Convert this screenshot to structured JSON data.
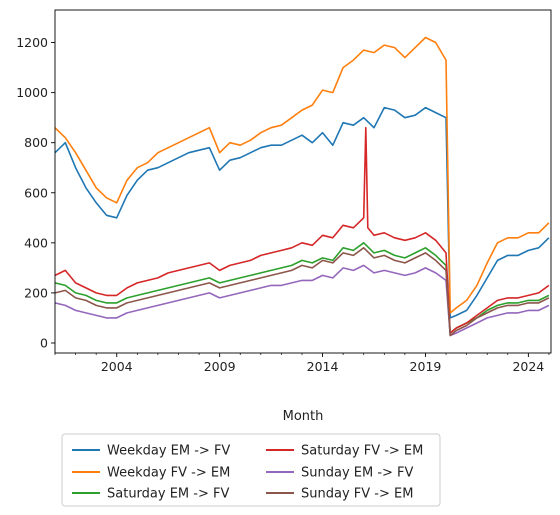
{
  "chart_data": {
    "type": "line",
    "title": "",
    "xlabel": "Month",
    "ylabel": "",
    "xlim": [
      2001.0,
      2025.1
    ],
    "ylim": [
      -40,
      1330
    ],
    "xticks": [
      2004,
      2009,
      2014,
      2019,
      2024
    ],
    "yticks": [
      0,
      200,
      400,
      600,
      800,
      1000,
      1200
    ],
    "grid": false,
    "legend_position": "bottom (below plot, 2 columns)",
    "series": [
      {
        "name": "Weekday EM -> FV",
        "color": "#1f77b4",
        "x": [
          2001.0,
          2001.5,
          2002.0,
          2002.5,
          2003.0,
          2003.5,
          2004.0,
          2004.5,
          2005.0,
          2005.5,
          2006.0,
          2006.5,
          2007.0,
          2007.5,
          2008.0,
          2008.5,
          2009.0,
          2009.5,
          2010.0,
          2010.5,
          2011.0,
          2011.5,
          2012.0,
          2012.5,
          2013.0,
          2013.5,
          2014.0,
          2014.5,
          2015.0,
          2015.5,
          2016.0,
          2016.5,
          2017.0,
          2017.5,
          2018.0,
          2018.5,
          2019.0,
          2019.5,
          2020.0,
          2020.2,
          2020.5,
          2021.0,
          2021.5,
          2022.0,
          2022.5,
          2023.0,
          2023.5,
          2024.0,
          2024.5,
          2025.0
        ],
        "values": [
          760,
          800,
          700,
          620,
          560,
          510,
          500,
          590,
          650,
          690,
          700,
          720,
          740,
          760,
          770,
          780,
          690,
          730,
          740,
          760,
          780,
          790,
          790,
          810,
          830,
          800,
          840,
          790,
          880,
          870,
          900,
          860,
          940,
          930,
          900,
          910,
          940,
          920,
          900,
          100,
          110,
          130,
          190,
          260,
          330,
          350,
          350,
          370,
          380,
          420
        ]
      },
      {
        "name": "Weekday FV -> EM",
        "color": "#ff7f0e",
        "x": [
          2001.0,
          2001.5,
          2002.0,
          2002.5,
          2003.0,
          2003.5,
          2004.0,
          2004.5,
          2005.0,
          2005.5,
          2006.0,
          2006.5,
          2007.0,
          2007.5,
          2008.0,
          2008.5,
          2009.0,
          2009.5,
          2010.0,
          2010.5,
          2011.0,
          2011.5,
          2012.0,
          2012.5,
          2013.0,
          2013.5,
          2014.0,
          2014.5,
          2015.0,
          2015.5,
          2016.0,
          2016.5,
          2017.0,
          2017.5,
          2018.0,
          2018.5,
          2019.0,
          2019.5,
          2020.0,
          2020.2,
          2020.5,
          2021.0,
          2021.5,
          2022.0,
          2022.5,
          2023.0,
          2023.5,
          2024.0,
          2024.5,
          2025.0
        ],
        "values": [
          860,
          820,
          760,
          690,
          620,
          580,
          560,
          650,
          700,
          720,
          760,
          780,
          800,
          820,
          840,
          860,
          760,
          800,
          790,
          810,
          840,
          860,
          870,
          900,
          930,
          950,
          1010,
          1000,
          1100,
          1130,
          1170,
          1160,
          1190,
          1180,
          1140,
          1180,
          1220,
          1200,
          1130,
          120,
          140,
          170,
          230,
          320,
          400,
          420,
          420,
          440,
          440,
          480
        ]
      },
      {
        "name": "Saturday EM -> FV",
        "color": "#2ca02c",
        "x": [
          2001.0,
          2001.5,
          2002.0,
          2002.5,
          2003.0,
          2003.5,
          2004.0,
          2004.5,
          2005.0,
          2005.5,
          2006.0,
          2006.5,
          2007.0,
          2007.5,
          2008.0,
          2008.5,
          2009.0,
          2009.5,
          2010.0,
          2010.5,
          2011.0,
          2011.5,
          2012.0,
          2012.5,
          2013.0,
          2013.5,
          2014.0,
          2014.5,
          2015.0,
          2015.5,
          2016.0,
          2016.5,
          2017.0,
          2017.5,
          2018.0,
          2018.5,
          2019.0,
          2019.5,
          2020.0,
          2020.2,
          2020.5,
          2021.0,
          2021.5,
          2022.0,
          2022.5,
          2023.0,
          2023.5,
          2024.0,
          2024.5,
          2025.0
        ],
        "values": [
          240,
          230,
          200,
          190,
          170,
          160,
          160,
          180,
          190,
          200,
          210,
          220,
          230,
          240,
          250,
          260,
          240,
          250,
          260,
          270,
          280,
          290,
          300,
          310,
          330,
          320,
          340,
          330,
          380,
          370,
          400,
          360,
          370,
          350,
          340,
          360,
          380,
          350,
          310,
          40,
          60,
          80,
          100,
          130,
          150,
          160,
          160,
          170,
          170,
          190
        ]
      },
      {
        "name": "Saturday FV -> EM",
        "color": "#d62728",
        "x": [
          2001.0,
          2001.5,
          2002.0,
          2002.5,
          2003.0,
          2003.5,
          2004.0,
          2004.5,
          2005.0,
          2005.5,
          2006.0,
          2006.5,
          2007.0,
          2007.5,
          2008.0,
          2008.5,
          2009.0,
          2009.5,
          2010.0,
          2010.5,
          2011.0,
          2011.5,
          2012.0,
          2012.5,
          2013.0,
          2013.5,
          2014.0,
          2014.5,
          2015.0,
          2015.5,
          2016.0,
          2016.1,
          2016.2,
          2016.5,
          2017.0,
          2017.5,
          2018.0,
          2018.5,
          2019.0,
          2019.5,
          2020.0,
          2020.2,
          2020.5,
          2021.0,
          2021.5,
          2022.0,
          2022.5,
          2023.0,
          2023.5,
          2024.0,
          2024.5,
          2025.0
        ],
        "values": [
          270,
          290,
          240,
          220,
          200,
          190,
          190,
          220,
          240,
          250,
          260,
          280,
          290,
          300,
          310,
          320,
          290,
          310,
          320,
          330,
          350,
          360,
          370,
          380,
          400,
          390,
          430,
          420,
          470,
          460,
          500,
          860,
          460,
          430,
          440,
          420,
          410,
          420,
          440,
          410,
          360,
          40,
          60,
          80,
          110,
          140,
          170,
          180,
          180,
          190,
          200,
          230
        ]
      },
      {
        "name": "Sunday EM -> FV",
        "color": "#9467bd",
        "x": [
          2001.0,
          2001.5,
          2002.0,
          2002.5,
          2003.0,
          2003.5,
          2004.0,
          2004.5,
          2005.0,
          2005.5,
          2006.0,
          2006.5,
          2007.0,
          2007.5,
          2008.0,
          2008.5,
          2009.0,
          2009.5,
          2010.0,
          2010.5,
          2011.0,
          2011.5,
          2012.0,
          2012.5,
          2013.0,
          2013.5,
          2014.0,
          2014.5,
          2015.0,
          2015.5,
          2016.0,
          2016.5,
          2017.0,
          2017.5,
          2018.0,
          2018.5,
          2019.0,
          2019.5,
          2020.0,
          2020.2,
          2020.5,
          2021.0,
          2021.5,
          2022.0,
          2022.5,
          2023.0,
          2023.5,
          2024.0,
          2024.5,
          2025.0
        ],
        "values": [
          160,
          150,
          130,
          120,
          110,
          100,
          100,
          120,
          130,
          140,
          150,
          160,
          170,
          180,
          190,
          200,
          180,
          190,
          200,
          210,
          220,
          230,
          230,
          240,
          250,
          250,
          270,
          260,
          300,
          290,
          310,
          280,
          290,
          280,
          270,
          280,
          300,
          280,
          250,
          30,
          40,
          60,
          80,
          100,
          110,
          120,
          120,
          130,
          130,
          150
        ]
      },
      {
        "name": "Sunday FV -> EM",
        "color": "#8c564b",
        "x": [
          2001.0,
          2001.5,
          2002.0,
          2002.5,
          2003.0,
          2003.5,
          2004.0,
          2004.5,
          2005.0,
          2005.5,
          2006.0,
          2006.5,
          2007.0,
          2007.5,
          2008.0,
          2008.5,
          2009.0,
          2009.5,
          2010.0,
          2010.5,
          2011.0,
          2011.5,
          2012.0,
          2012.5,
          2013.0,
          2013.5,
          2014.0,
          2014.5,
          2015.0,
          2015.5,
          2016.0,
          2016.5,
          2017.0,
          2017.5,
          2018.0,
          2018.5,
          2019.0,
          2019.5,
          2020.0,
          2020.2,
          2020.5,
          2021.0,
          2021.5,
          2022.0,
          2022.5,
          2023.0,
          2023.5,
          2024.0,
          2024.5,
          2025.0
        ],
        "values": [
          200,
          210,
          180,
          170,
          150,
          140,
          140,
          160,
          170,
          180,
          190,
          200,
          210,
          220,
          230,
          240,
          220,
          230,
          240,
          250,
          260,
          270,
          280,
          290,
          310,
          300,
          330,
          320,
          360,
          350,
          380,
          340,
          350,
          330,
          320,
          340,
          360,
          330,
          290,
          30,
          50,
          70,
          100,
          120,
          140,
          150,
          150,
          160,
          160,
          180
        ]
      }
    ]
  }
}
